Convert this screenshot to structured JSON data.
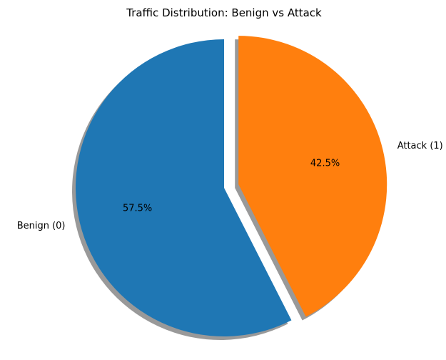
{
  "chart_data": {
    "type": "pie",
    "title": "Traffic Distribution: Benign vs Attack",
    "labels": [
      "Benign (0)",
      "Attack (1)"
    ],
    "values": [
      57.5,
      42.5
    ],
    "percent_labels": [
      "57.5%",
      "42.5%"
    ],
    "colors": [
      "#1f77b4",
      "#ff7f0e"
    ],
    "exploded": [
      false,
      true
    ],
    "shadow": true,
    "start_angle_deg": 90,
    "direction": "counterclockwise",
    "legend": "none"
  }
}
